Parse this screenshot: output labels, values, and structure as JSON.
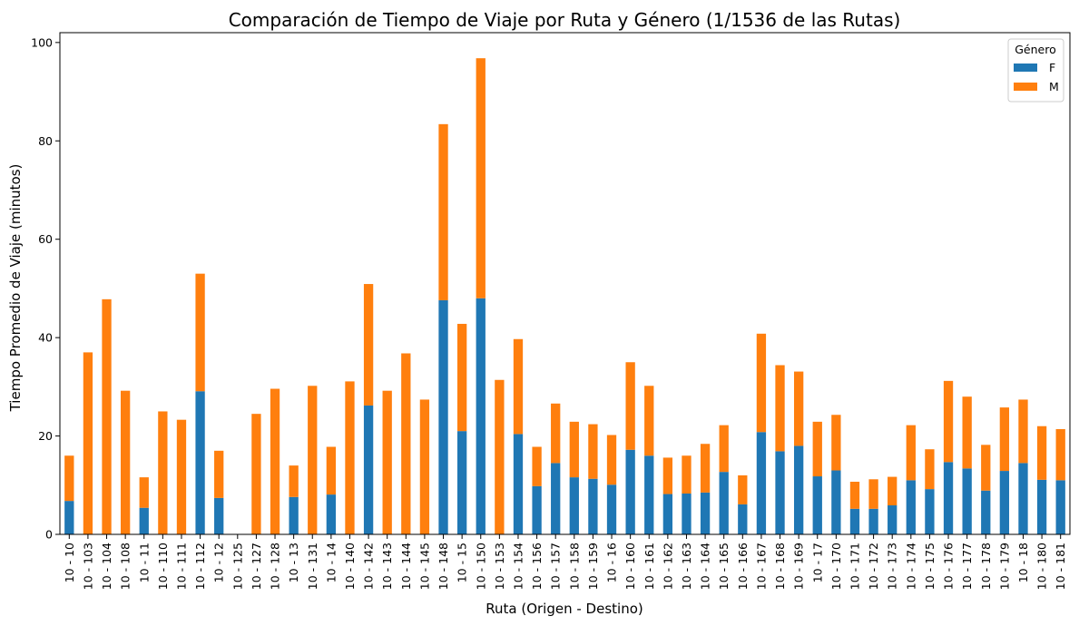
{
  "chart_data": {
    "type": "bar",
    "stacked": true,
    "title": "Comparación de Tiempo de Viaje por Ruta y Género (1/1536 de las Rutas)",
    "xlabel": "Ruta (Origen - Destino)",
    "ylabel": "Tiempo Promedio de Viaje (minutos)",
    "ylim": [
      0,
      102
    ],
    "yticks": [
      0,
      20,
      40,
      60,
      80,
      100
    ],
    "grid": false,
    "legend": {
      "title": "Género",
      "placement": "top-right"
    },
    "categories": [
      "10 - 10",
      "10 - 103",
      "10 - 104",
      "10 - 108",
      "10 - 11",
      "10 - 110",
      "10 - 111",
      "10 - 112",
      "10 - 12",
      "10 - 125",
      "10 - 127",
      "10 - 128",
      "10 - 13",
      "10 - 131",
      "10 - 14",
      "10 - 140",
      "10 - 142",
      "10 - 143",
      "10 - 144",
      "10 - 145",
      "10 - 148",
      "10 - 15",
      "10 - 150",
      "10 - 153",
      "10 - 154",
      "10 - 156",
      "10 - 157",
      "10 - 158",
      "10 - 159",
      "10 - 16",
      "10 - 160",
      "10 - 161",
      "10 - 162",
      "10 - 163",
      "10 - 164",
      "10 - 165",
      "10 - 166",
      "10 - 167",
      "10 - 168",
      "10 - 169",
      "10 - 17",
      "10 - 170",
      "10 - 171",
      "10 - 172",
      "10 - 173",
      "10 - 174",
      "10 - 175",
      "10 - 176",
      "10 - 177",
      "10 - 178",
      "10 - 179",
      "10 - 18",
      "10 - 180",
      "10 - 181"
    ],
    "series": [
      {
        "name": "F",
        "color": "#1f77b4",
        "values": [
          6.8,
          0,
          0,
          0,
          5.4,
          0,
          0,
          29.1,
          7.4,
          0,
          0,
          0,
          7.6,
          0,
          8.1,
          0,
          26.2,
          0,
          0,
          0,
          47.6,
          21.0,
          48.0,
          0,
          20.4,
          9.8,
          14.5,
          11.6,
          11.3,
          10.1,
          17.2,
          16.0,
          8.2,
          8.3,
          8.5,
          12.7,
          6.1,
          20.8,
          16.9,
          18.0,
          11.8,
          13.0,
          5.2,
          5.2,
          5.9,
          11.0,
          9.2,
          14.7,
          13.4,
          8.9,
          12.9,
          14.5,
          11.1,
          11.0
        ]
      },
      {
        "name": "M",
        "color": "#ff7f0e",
        "values": [
          9.2,
          37.0,
          47.8,
          29.2,
          6.2,
          25.0,
          23.3,
          23.9,
          9.6,
          0,
          24.5,
          29.6,
          6.4,
          30.2,
          9.7,
          31.1,
          24.7,
          29.2,
          36.8,
          27.4,
          35.8,
          21.8,
          48.8,
          31.4,
          19.3,
          8.0,
          12.1,
          11.3,
          11.1,
          10.1,
          17.8,
          14.2,
          7.4,
          7.7,
          9.9,
          9.5,
          5.9,
          20.0,
          17.5,
          15.1,
          11.1,
          11.3,
          5.5,
          6.0,
          5.8,
          11.2,
          8.1,
          16.5,
          14.6,
          9.3,
          12.9,
          12.9,
          10.9,
          10.4
        ]
      }
    ]
  }
}
